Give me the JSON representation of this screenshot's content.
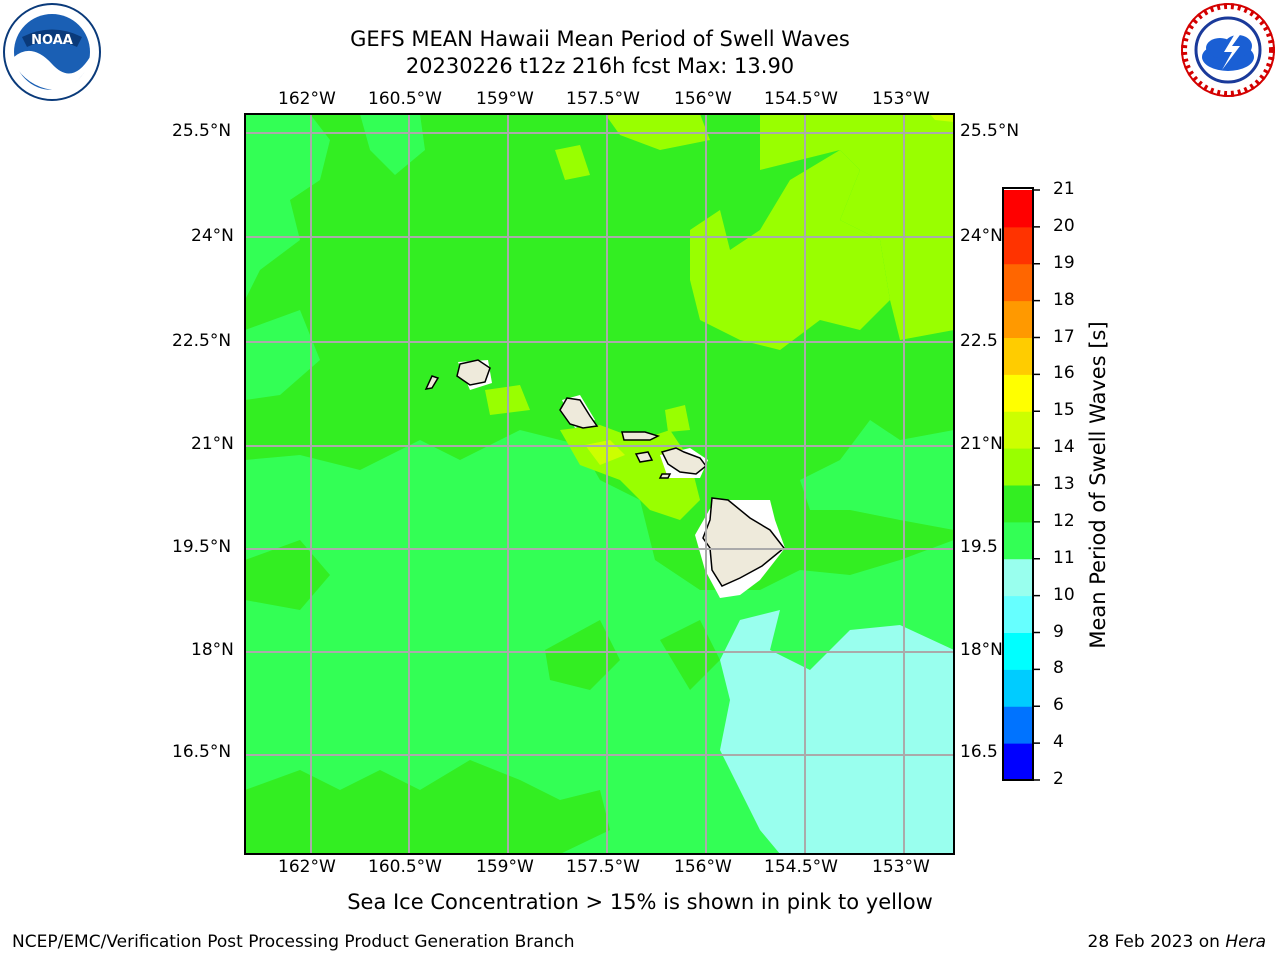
{
  "header": {
    "title_line1": "GEFS MEAN Hawaii Mean Period of Swell Waves",
    "title_line2": "20230226 t12z 216h fcst   Max: 13.90"
  },
  "logos": {
    "left": "noaa-logo",
    "right": "nws-logo"
  },
  "map": {
    "lon_ticks": [
      "162°W",
      "160.5°W",
      "159°W",
      "157.5°W",
      "156°W",
      "154.5°W",
      "153°W"
    ],
    "lat_ticks": [
      "25.5°N",
      "24°N",
      "22.5°N",
      "21°N",
      "19.5°N",
      "18°N",
      "16.5°N"
    ],
    "lat_ticks_right": [
      "25.5°N",
      "24°N",
      "22.5",
      "21°N",
      "19.5",
      "18°N",
      "16.5"
    ],
    "grid": true,
    "land_color": "#eeeadb"
  },
  "colorbar": {
    "title": "Mean Period of Swell Waves [s]",
    "labels": [
      "2",
      "4",
      "6",
      "8",
      "9",
      "10",
      "11",
      "12",
      "13",
      "14",
      "15",
      "16",
      "17",
      "18",
      "19",
      "20",
      "21"
    ],
    "colors": [
      "#0000ff",
      "#0073ff",
      "#00ccff",
      "#00ffff",
      "#66ffff",
      "#99ffee",
      "#33ff55",
      "#33ee22",
      "#99ff00",
      "#ccff00",
      "#ffff00",
      "#ffcc00",
      "#ff9900",
      "#ff6600",
      "#ff3300",
      "#ff0000"
    ]
  },
  "chart_data": {
    "type": "heatmap",
    "title": "GEFS MEAN Hawaii Mean Period of Swell Waves",
    "subtitle": "20230226 t12z 216h fcst   Max: 13.90",
    "colorbar_label": "Mean Period of Swell Waves [s]",
    "max_value": 13.9,
    "xlim": [
      -163,
      -152.2
    ],
    "ylim": [
      14.7,
      25.7
    ],
    "regions": [
      {
        "area": "north-east",
        "value_range": [
          12,
          13
        ]
      },
      {
        "area": "central band near islands",
        "value_range": [
          11,
          12
        ]
      },
      {
        "area": "south and west",
        "value_range": [
          10,
          11
        ]
      },
      {
        "area": "south-east",
        "value_range": [
          9,
          10
        ]
      },
      {
        "area": "channel west of Maui",
        "value_range": [
          13,
          14
        ]
      }
    ]
  },
  "caption": "Sea Ice Concentration > 15% is shown in pink to yellow",
  "footer": {
    "left": "NCEP/EMC/Verification Post Processing Product Generation Branch",
    "date": "28 Feb 2023 on ",
    "machine": "Hera"
  }
}
